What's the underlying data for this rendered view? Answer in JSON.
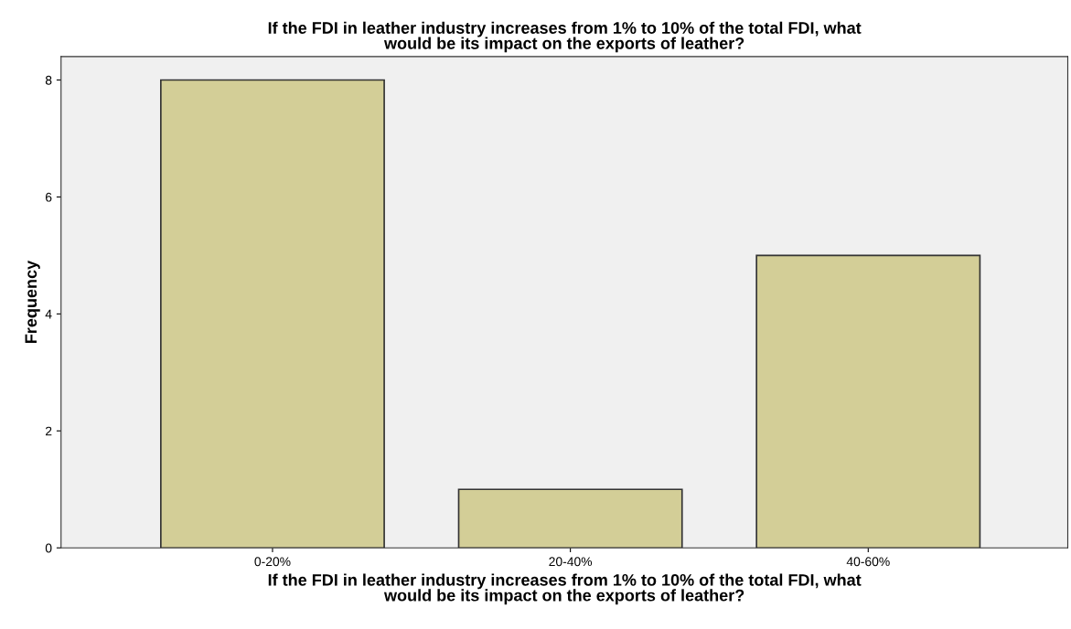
{
  "chart_data": {
    "type": "bar",
    "title": "If the FDI in leather industry increases from 1% to 10% of the total FDI, what\nwould be its impact on the exports of leather?",
    "xlabel": "If the FDI in leather industry increases from 1% to 10% of the total FDI, what\nwould be its impact on the exports of leather?",
    "ylabel": "Frequency",
    "categories": [
      "0-20%",
      "20-40%",
      "40-60%"
    ],
    "values": [
      8,
      1,
      5
    ],
    "color": "#d3ce97",
    "ylim": [
      0,
      8.4
    ],
    "yticks": [
      0,
      2,
      4,
      6,
      8
    ],
    "grid": false,
    "legend": false
  }
}
